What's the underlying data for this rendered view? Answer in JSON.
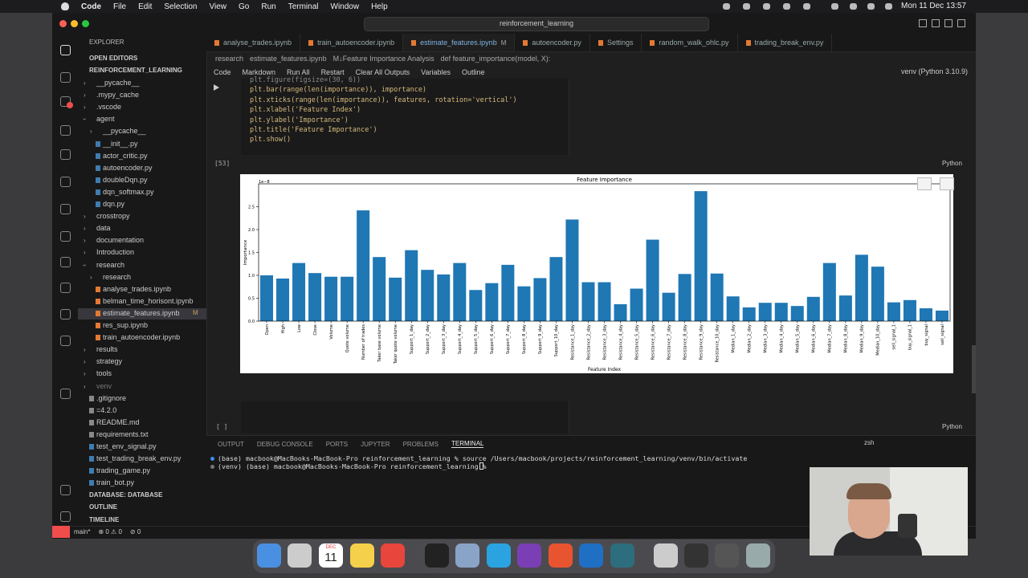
{
  "menubar": {
    "app": "Code",
    "items": [
      "File",
      "Edit",
      "Selection",
      "View",
      "Go",
      "Run",
      "Terminal",
      "Window",
      "Help"
    ],
    "clock": "Mon 11 Dec  13:57"
  },
  "titlebar": {
    "search": "reinforcement_learning"
  },
  "sidebar": {
    "header": "EXPLORER",
    "open_editors": "OPEN EDITORS",
    "root": "REINFORCEMENT_LEARNING",
    "tree": [
      {
        "label": "__pycache__",
        "folder": true
      },
      {
        "label": ".mypy_cache",
        "folder": true
      },
      {
        "label": ".vscode",
        "folder": true
      },
      {
        "label": "agent",
        "children": [
          {
            "label": "__pycache__",
            "folder": true
          },
          {
            "label": "__init__.py"
          },
          {
            "label": "actor_critic.py"
          },
          {
            "label": "autoencoder.py"
          },
          {
            "label": "doubleDqn.py"
          },
          {
            "label": "dqn_softmax.py"
          },
          {
            "label": "dqn.py"
          }
        ]
      },
      {
        "label": "crosstropy",
        "folder": true
      },
      {
        "label": "data",
        "folder": true
      },
      {
        "label": "documentation",
        "folder": true
      },
      {
        "label": "Introduction",
        "folder": true
      },
      {
        "label": "research",
        "children": [
          {
            "label": "research",
            "folder": true
          },
          {
            "label": "analyse_trades.ipynb"
          },
          {
            "label": "belman_time_horisont.ipynb"
          },
          {
            "label": "estimate_features.ipynb",
            "badge": "M",
            "selected": true
          },
          {
            "label": "res_sup.ipynb"
          },
          {
            "label": "train_autoencoder.ipynb"
          }
        ]
      },
      {
        "label": "results",
        "folder": true
      },
      {
        "label": "strategy",
        "folder": true
      },
      {
        "label": "tools",
        "folder": true
      },
      {
        "label": "venv",
        "folder": true
      },
      {
        "label": ".gitignore"
      },
      {
        "label": "=4.2.0"
      },
      {
        "label": "README.md"
      },
      {
        "label": "requirements.txt"
      },
      {
        "label": "test_env_signal.py"
      },
      {
        "label": "test_trading_break_env.py"
      },
      {
        "label": "trading_game.py"
      },
      {
        "label": "train_bot.py"
      }
    ],
    "sections": [
      "DATABASE: DATABASE",
      "OUTLINE",
      "TIMELINE"
    ]
  },
  "tabs": {
    "items": [
      "analyse_trades.ipynb",
      "train_autoencoder.ipynb",
      "estimate_features.ipynb",
      "autoencoder.py",
      "Settings",
      "random_walk_ohlc.py",
      "trading_break_env.py"
    ],
    "active": 2,
    "active_badge": "M"
  },
  "breadcrumb": [
    "research",
    "estimate_features.ipynb",
    "M↓Feature Importance Analysis",
    "def feature_importance(model, X):"
  ],
  "toolbar": {
    "items": [
      "Code",
      "Markdown",
      "Run All",
      "Restart",
      "Clear All Outputs",
      "Variables",
      "Outline"
    ],
    "kernel": "venv (Python 3.10.9)"
  },
  "cell": {
    "code": [
      "plt.figure(figsize=(30, 6))",
      "plt.bar(range(len(importance)), importance)",
      "plt.xticks(range(len(importance)), features, rotation='vertical')",
      "plt.xlabel('Feature Index')",
      "plt.ylabel('Importance')",
      "plt.title('Feature Importance')",
      "plt.show()"
    ],
    "count": "[53]",
    "language": "Python"
  },
  "next_cell": {
    "count": "[ ]",
    "language": "Python"
  },
  "chart_data": {
    "type": "bar",
    "title": "Feature Importance",
    "xlabel": "Feature Index",
    "ylabel": "Importance",
    "offset_label": "1e−8",
    "color": "#1f77b4",
    "categories": [
      "Open",
      "High",
      "Low",
      "Close",
      "Volume",
      "Quote volume",
      "Number of trades",
      "Taker base volume",
      "Taker quote volume",
      "Support_1_day",
      "Support_2_day",
      "Support_3_day",
      "Support_4_day",
      "Support_5_day",
      "Support_6_day",
      "Support_7_day",
      "Support_8_day",
      "Support_9_day",
      "Support_10_day",
      "Resistance_1_day",
      "Resistance_2_day",
      "Resistance_3_day",
      "Resistance_4_day",
      "Resistance_5_day",
      "Resistance_6_day",
      "Resistance_7_day",
      "Resistance_8_day",
      "Resistance_9_day",
      "Resistance_10_day",
      "Median_1_day",
      "Median_2_day",
      "Median_3_day",
      "Median_4_day",
      "Median_5_day",
      "Median_6_day",
      "Median_7_day",
      "Median_8_day",
      "Median_9_day",
      "Median_10_day",
      "sell_signal_1",
      "buy_signal_1",
      "buy_signal",
      "sell_signal"
    ],
    "values": [
      1.0,
      0.93,
      1.27,
      1.05,
      0.97,
      0.97,
      2.42,
      1.4,
      0.95,
      1.55,
      1.12,
      1.02,
      1.27,
      0.68,
      0.83,
      1.23,
      0.76,
      0.94,
      1.4,
      2.22,
      0.85,
      0.85,
      0.37,
      0.71,
      1.78,
      0.62,
      1.03,
      2.84,
      1.04,
      0.54,
      0.3,
      0.4,
      0.4,
      0.33,
      0.53,
      1.27,
      0.56,
      1.45,
      1.19,
      0.41,
      0.46,
      0.28,
      0.23
    ],
    "ylim": [
      0,
      3.0
    ],
    "yticks": [
      {
        "value": 0,
        "label": "0.0"
      },
      0.5,
      {
        "value": 1,
        "label": "1.0"
      },
      1.5,
      {
        "value": 2,
        "label": "2.0"
      },
      2.5
    ]
  },
  "panel": {
    "tabs": [
      "OUTPUT",
      "DEBUG CONSOLE",
      "PORTS",
      "JUPYTER",
      "PROBLEMS",
      "TERMINAL"
    ],
    "active": 5,
    "shell": "zsh",
    "lines": [
      "(base) macbook@MacBooks-MacBook-Pro reinforcement_learning % source /Users/macbook/projects/reinforcement_learning/venv/bin/activate",
      "(venv) (base) macbook@MacBooks-MacBook-Pro reinforcement_learning % "
    ]
  },
  "statusbar": {
    "branch": "main*",
    "problems": "⊗ 0 ⚠ 0",
    "ports": "⊘ 0"
  },
  "dock": {
    "calendar_month": "DEC",
    "calendar_day": "11"
  }
}
